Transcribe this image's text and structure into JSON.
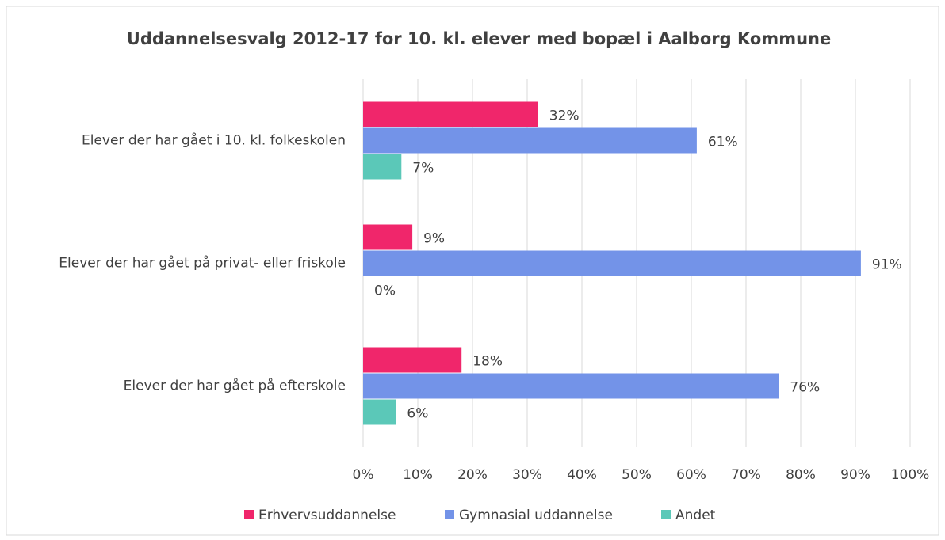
{
  "chart_data": {
    "type": "bar",
    "orientation": "horizontal",
    "title": "Uddannelsesvalg 2012-17 for 10. kl. elever med bopæl i Aalborg Kommune",
    "categories": [
      "Elever der har gået i 10. kl. folkeskolen",
      "Elever der har gået på privat- eller friskole",
      "Elever der har gået på efterskole"
    ],
    "series": [
      {
        "name": "Erhvervsuddannelse",
        "color": "#f0266b",
        "values": [
          32,
          9,
          18
        ],
        "value_labels": [
          "32%",
          "9%",
          "18%"
        ]
      },
      {
        "name": "Gymnasial uddannelse",
        "color": "#7393e8",
        "values": [
          61,
          91,
          76
        ],
        "value_labels": [
          "61%",
          "91%",
          "76%"
        ]
      },
      {
        "name": "Andet",
        "color": "#5bc8b8",
        "values": [
          7,
          0,
          6
        ],
        "value_labels": [
          "7%",
          "0%",
          "6%"
        ]
      }
    ],
    "xlim": [
      0,
      100
    ],
    "xticks": [
      {
        "value": 0,
        "label": "0%"
      },
      {
        "value": 10,
        "label": "10%"
      },
      {
        "value": 20,
        "label": "20%"
      },
      {
        "value": 30,
        "label": "30%"
      },
      {
        "value": 40,
        "label": "40%"
      },
      {
        "value": 50,
        "label": "50%"
      },
      {
        "value": 60,
        "label": "60%"
      },
      {
        "value": 70,
        "label": "70%"
      },
      {
        "value": 80,
        "label": "80%"
      },
      {
        "value": 90,
        "label": "90%"
      },
      {
        "value": 100,
        "label": "100%"
      }
    ],
    "grid": true,
    "legend": "bottom"
  }
}
